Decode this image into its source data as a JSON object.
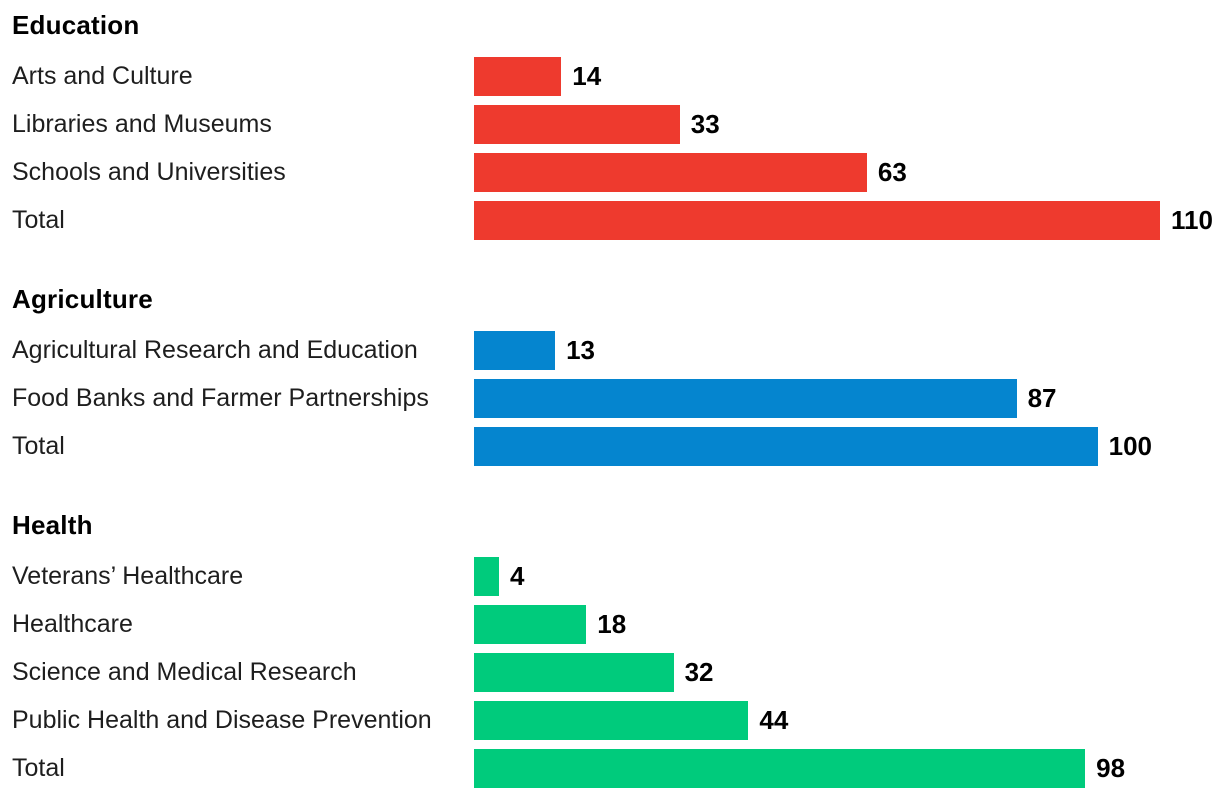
{
  "chart_data": {
    "type": "bar",
    "orientation": "horizontal",
    "value_axis_max": 110,
    "grid": false,
    "legend": false,
    "groups": [
      {
        "title": "Education",
        "color": "#ee3a2e",
        "rows": [
          {
            "label": "Arts and Culture",
            "value": 14
          },
          {
            "label": "Libraries and Museums",
            "value": 33
          },
          {
            "label": "Schools and Universities",
            "value": 63
          },
          {
            "label": "Total",
            "value": 110
          }
        ]
      },
      {
        "title": "Agriculture",
        "color": "#0585cf",
        "rows": [
          {
            "label": "Agricultural Research and Education",
            "value": 13
          },
          {
            "label": "Food Banks and Farmer Partnerships",
            "value": 87
          },
          {
            "label": "Total",
            "value": 100
          }
        ]
      },
      {
        "title": "Health",
        "color": "#00cb7c",
        "rows": [
          {
            "label": "Veterans’ Healthcare",
            "value": 4
          },
          {
            "label": "Healthcare",
            "value": 18
          },
          {
            "label": "Science and Medical Research",
            "value": 32
          },
          {
            "label": "Public Health and Disease Prevention",
            "value": 44
          },
          {
            "label": "Total",
            "value": 98
          }
        ]
      }
    ],
    "colors": {
      "education": "#ee3a2e",
      "agriculture": "#0585cf",
      "health": "#00cb7c",
      "header_text": "#000000",
      "label_text": "#1e1e1e",
      "value_text": "#000000",
      "background": "#ffffff"
    }
  }
}
